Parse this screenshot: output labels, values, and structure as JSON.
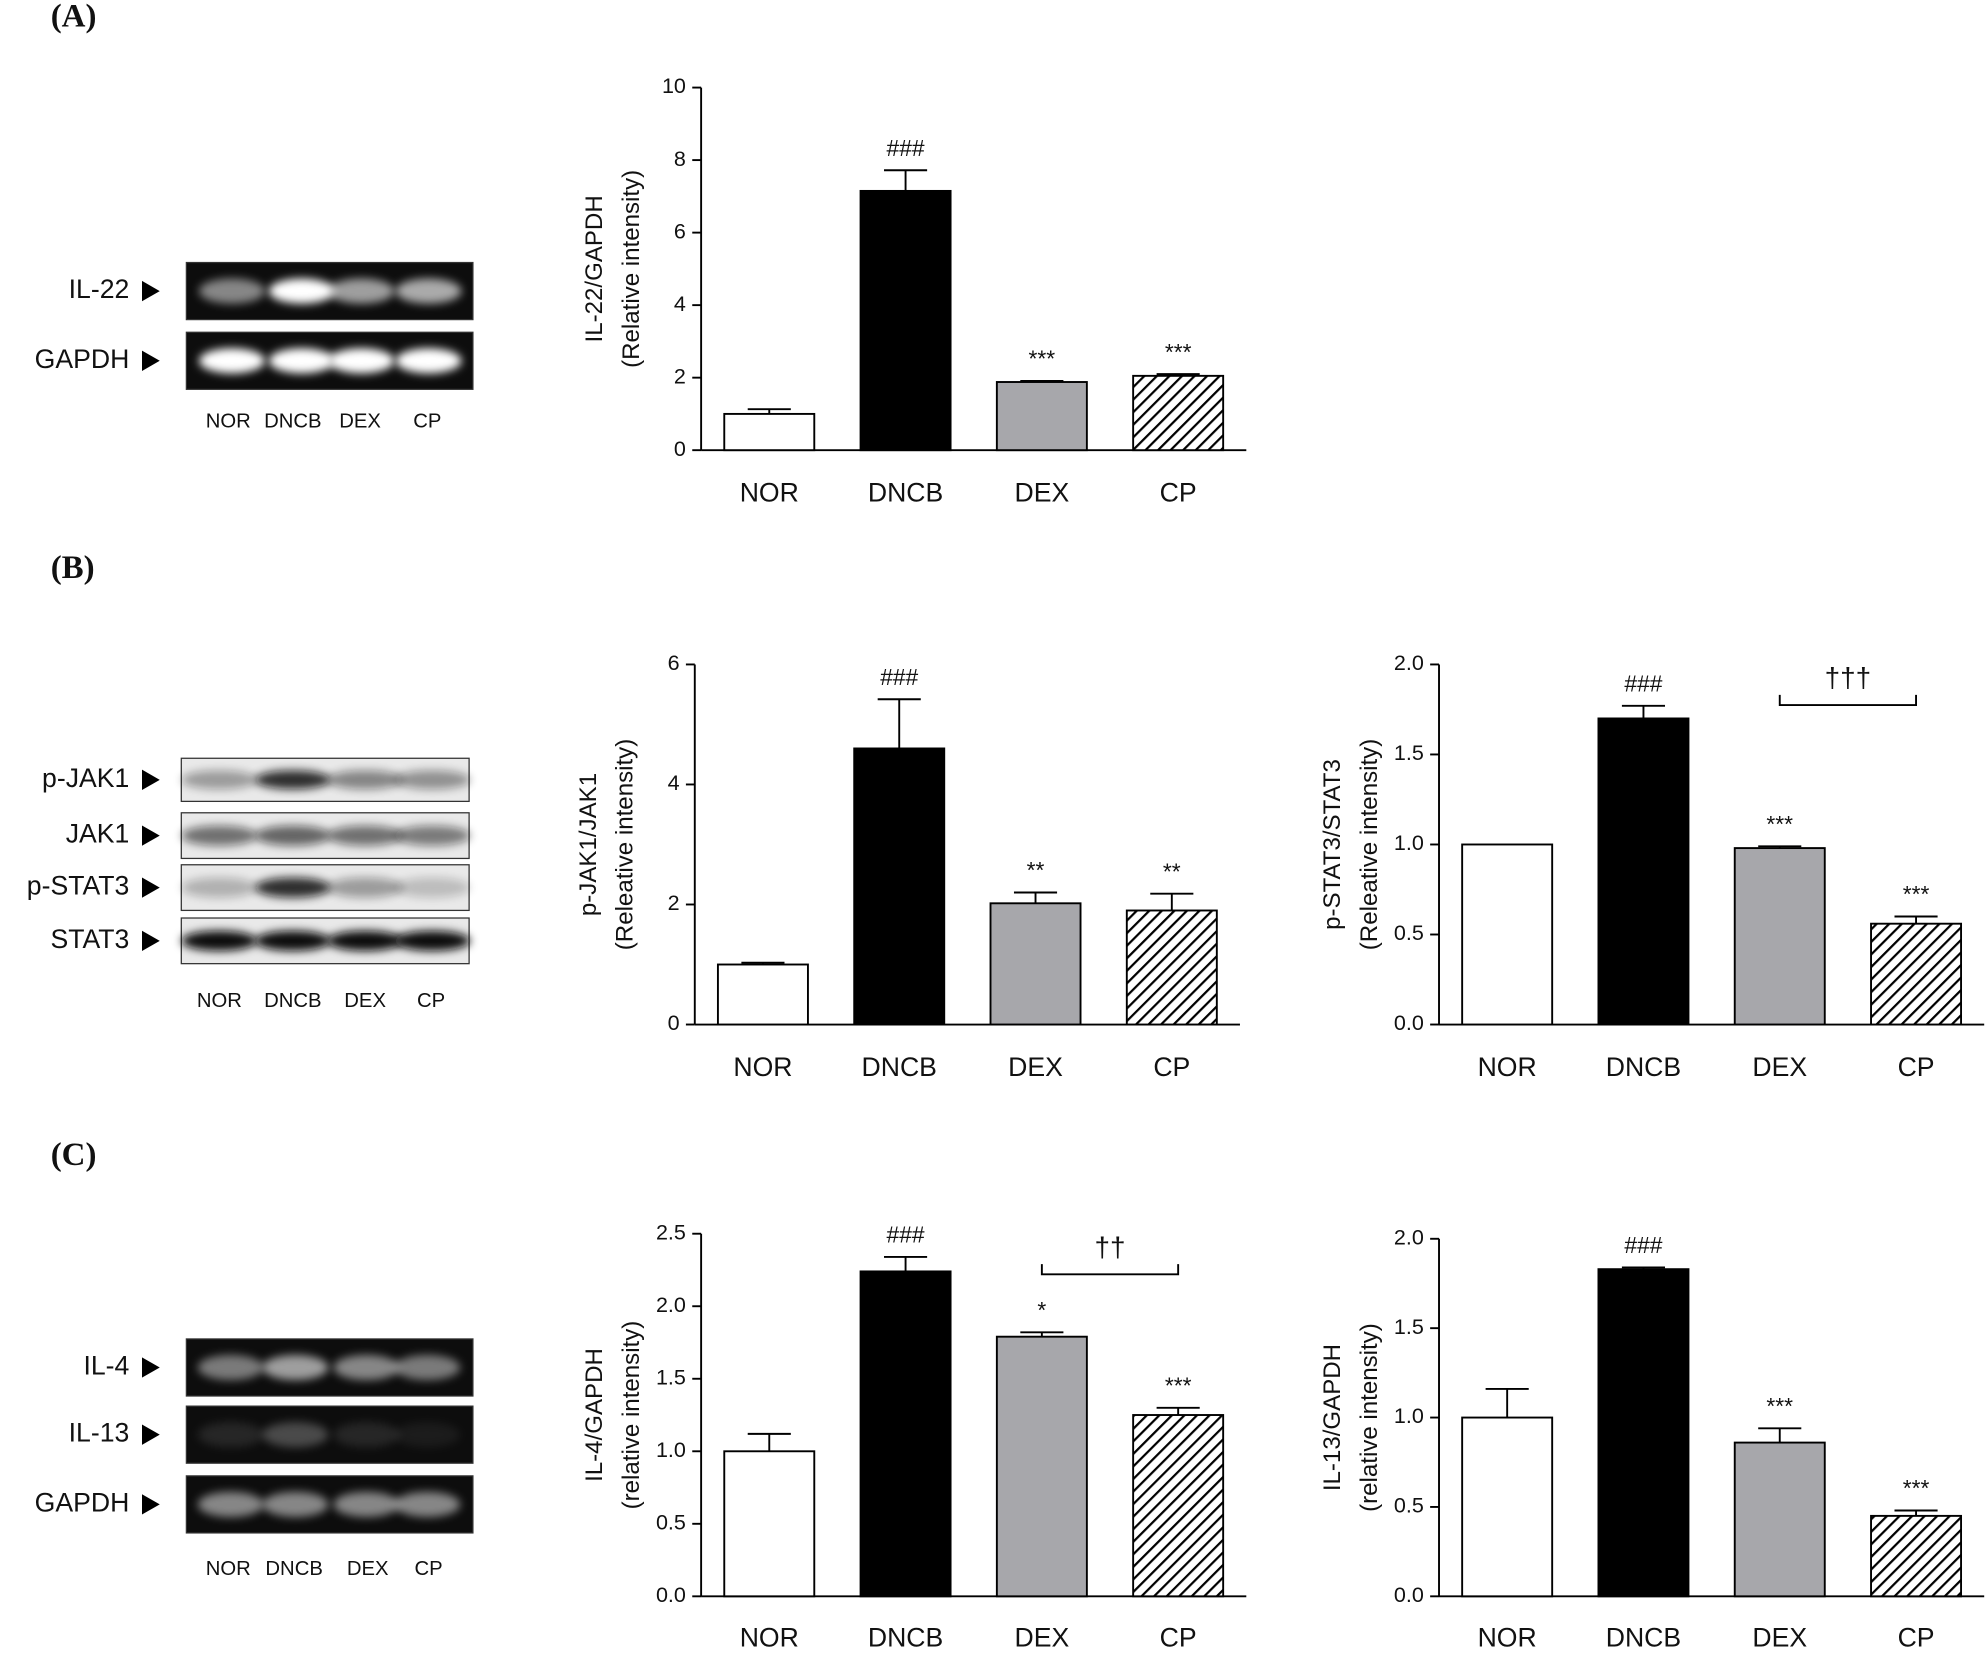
{
  "panels": [
    {
      "label": "(A)",
      "blot": {
        "rows": [
          "IL-22",
          "GAPDH"
        ],
        "lanes": [
          "NOR",
          "DNCB",
          "DEX",
          "CP"
        ]
      }
    },
    {
      "label": "(B)",
      "blot": {
        "rows": [
          "p-JAK1",
          "JAK1",
          "p-STAT3",
          "STAT3"
        ],
        "lanes": [
          "NOR",
          "DNCB",
          "DEX",
          "CP"
        ]
      }
    },
    {
      "label": "(C)",
      "blot": {
        "rows": [
          "IL-4",
          "IL-13",
          "GAPDH"
        ],
        "lanes": [
          "NOR",
          "DNCB",
          "DEX",
          "CP"
        ]
      }
    }
  ],
  "chart_data": [
    {
      "type": "bar",
      "ylabel": [
        "IL-22/GAPDH",
        "(Relative intensity)"
      ],
      "categories": [
        "NOR",
        "DNCB",
        "DEX",
        "CP"
      ],
      "values": [
        1.0,
        7.15,
        1.88,
        2.05
      ],
      "errors": [
        0.13,
        0.57,
        0.03,
        0.05
      ],
      "colors": [
        "#ffffff",
        "#000000",
        "#a7a7ab",
        "#ffffff"
      ],
      "hatch": [
        false,
        false,
        false,
        true
      ],
      "annotations": [
        null,
        "###",
        "***",
        "***"
      ],
      "ylim": [
        0,
        10
      ],
      "yticks": [
        0,
        2,
        4,
        6,
        8,
        10
      ]
    },
    {
      "type": "bar",
      "ylabel": [
        "p-JAK1/JAK1",
        "(Releative intensity)"
      ],
      "categories": [
        "NOR",
        "DNCB",
        "DEX",
        "CP"
      ],
      "values": [
        1.0,
        4.6,
        2.02,
        1.9
      ],
      "errors": [
        0.03,
        0.82,
        0.18,
        0.28
      ],
      "colors": [
        "#ffffff",
        "#000000",
        "#a7a7ab",
        "#ffffff"
      ],
      "hatch": [
        false,
        false,
        false,
        true
      ],
      "annotations": [
        null,
        "###",
        "**",
        "**"
      ],
      "ylim": [
        0,
        6
      ],
      "yticks": [
        0,
        2,
        4,
        6
      ]
    },
    {
      "type": "bar",
      "ylabel": [
        "p-STAT3/STAT3",
        "(Releative intensity)"
      ],
      "categories": [
        "NOR",
        "DNCB",
        "DEX",
        "CP"
      ],
      "values": [
        1.0,
        1.7,
        0.98,
        0.56
      ],
      "errors": [
        0,
        0.07,
        0.01,
        0.04
      ],
      "colors": [
        "#ffffff",
        "#000000",
        "#a7a7ab",
        "#ffffff"
      ],
      "hatch": [
        false,
        false,
        false,
        true
      ],
      "annotations": [
        null,
        "###",
        "***",
        "***"
      ],
      "bracket": {
        "label": "†††",
        "from": "DEX",
        "to": "CP"
      },
      "ylim": [
        0,
        2.0
      ],
      "yticks": [
        {
          "value": 0,
          "label": "0.0"
        },
        0.5,
        {
          "value": 1,
          "label": "1.0"
        },
        1.5,
        {
          "value": 2,
          "label": "2.0"
        }
      ]
    },
    {
      "type": "bar",
      "ylabel": [
        "IL-4/GAPDH",
        "(relative intensity)"
      ],
      "categories": [
        "NOR",
        "DNCB",
        "DEX",
        "CP"
      ],
      "values": [
        1.0,
        2.24,
        1.79,
        1.25
      ],
      "errors": [
        0.12,
        0.1,
        0.03,
        0.05
      ],
      "colors": [
        "#ffffff",
        "#000000",
        "#a7a7ab",
        "#ffffff"
      ],
      "hatch": [
        false,
        false,
        false,
        true
      ],
      "annotations": [
        null,
        "###",
        "*",
        "***"
      ],
      "bracket": {
        "label": "††",
        "from": "DEX",
        "to": "CP"
      },
      "ylim": [
        0,
        2.5
      ],
      "yticks": [
        {
          "value": 0,
          "label": "0.0"
        },
        0.5,
        {
          "value": 1,
          "label": "1.0"
        },
        1.5,
        {
          "value": 2,
          "label": "2.0"
        },
        2.5
      ]
    },
    {
      "type": "bar",
      "ylabel": [
        "IL-13/GAPDH",
        "(relative intensity)"
      ],
      "categories": [
        "NOR",
        "DNCB",
        "DEX",
        "CP"
      ],
      "values": [
        1.0,
        1.83,
        0.86,
        0.45
      ],
      "errors": [
        0.16,
        0.01,
        0.08,
        0.03
      ],
      "colors": [
        "#ffffff",
        "#000000",
        "#a7a7ab",
        "#ffffff"
      ],
      "hatch": [
        false,
        false,
        false,
        true
      ],
      "annotations": [
        null,
        "###",
        "***",
        "***"
      ],
      "ylim": [
        0,
        2.0
      ],
      "yticks": [
        {
          "value": 0,
          "label": "0.0"
        },
        0.5,
        {
          "value": 1,
          "label": "1.0"
        },
        1.5,
        {
          "value": 2,
          "label": "2.0"
        }
      ]
    }
  ]
}
